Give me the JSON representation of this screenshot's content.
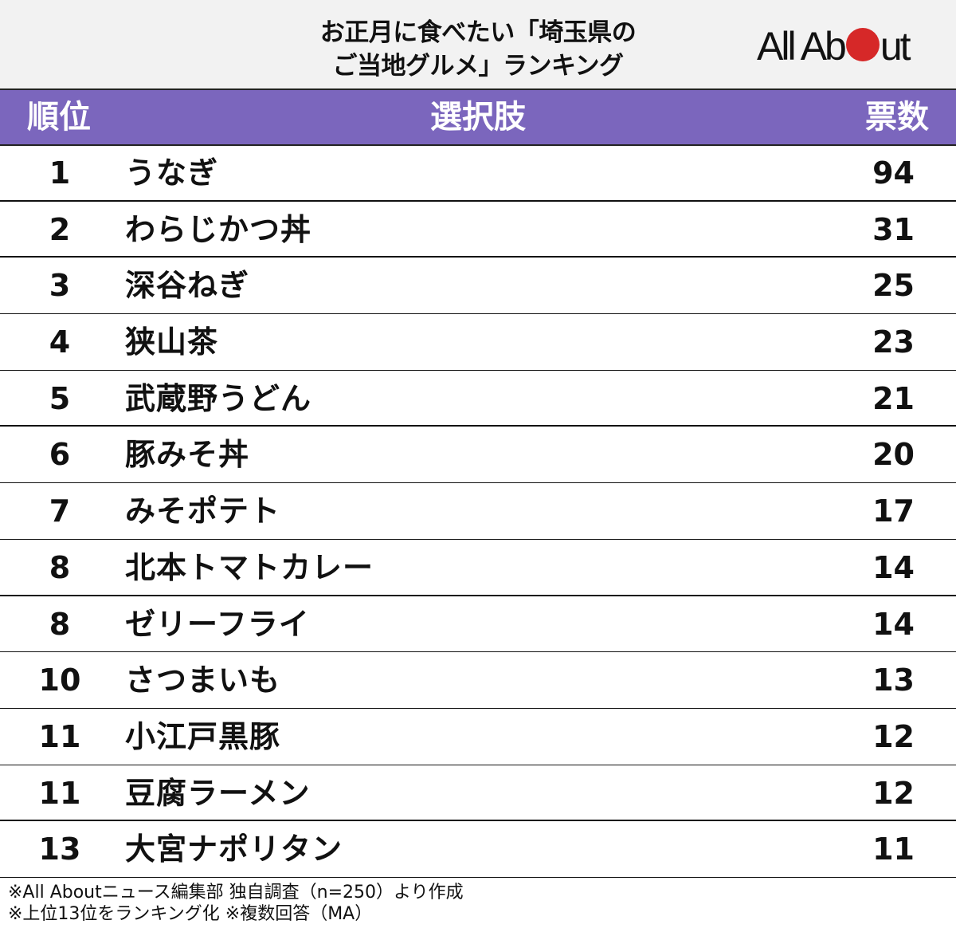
{
  "title": {
    "line1": "お正月に食べたい「埼玉県の",
    "line2": "ご当地グルメ」ランキング"
  },
  "logo": {
    "text_left": "All Ab",
    "text_right": "ut",
    "dot_color": "#d62828"
  },
  "colors": {
    "header_bg": "#7b66bd",
    "title_bg": "#f2f2f2",
    "header_text": "#ffffff"
  },
  "table": {
    "headers": {
      "rank": "順位",
      "choice": "選択肢",
      "votes": "票数"
    },
    "rows": [
      {
        "rank": "1",
        "name": "うなぎ",
        "votes": "94"
      },
      {
        "rank": "2",
        "name": "わらじかつ丼",
        "votes": "31"
      },
      {
        "rank": "3",
        "name": "深谷ねぎ",
        "votes": "25"
      },
      {
        "rank": "4",
        "name": "狭山茶",
        "votes": "23"
      },
      {
        "rank": "5",
        "name": "武蔵野うどん",
        "votes": "21"
      },
      {
        "rank": "6",
        "name": "豚みそ丼",
        "votes": "20"
      },
      {
        "rank": "7",
        "name": "みそポテト",
        "votes": "17"
      },
      {
        "rank": "8",
        "name": "北本トマトカレー",
        "votes": "14"
      },
      {
        "rank": "8",
        "name": "ゼリーフライ",
        "votes": "14"
      },
      {
        "rank": "10",
        "name": "さつまいも",
        "votes": "13"
      },
      {
        "rank": "11",
        "name": "小江戸黒豚",
        "votes": "12"
      },
      {
        "rank": "11",
        "name": "豆腐ラーメン",
        "votes": "12"
      },
      {
        "rank": "13",
        "name": "大宮ナポリタン",
        "votes": "11"
      }
    ]
  },
  "footer": {
    "line1": "※All Aboutニュース編集部 独自調査（n=250）より作成",
    "line2": "※上位13位をランキング化 ※複数回答（MA）"
  }
}
